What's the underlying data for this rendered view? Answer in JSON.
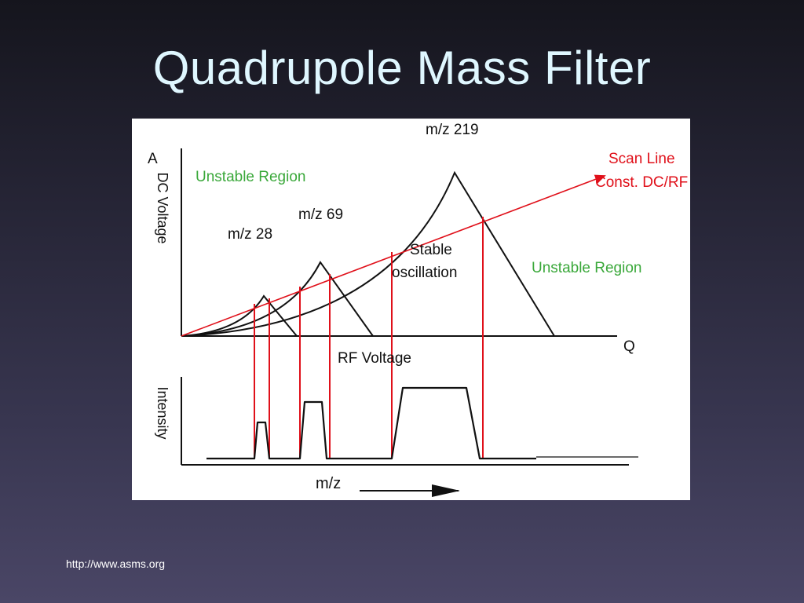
{
  "slide": {
    "title": "Quadrupole Mass Filter",
    "footer_url": "http://www.asms.org"
  },
  "diagram": {
    "top_panel": {
      "y_axis_top_label": "A",
      "y_axis_label": "DC Voltage",
      "x_axis_label": "RF Voltage",
      "x_axis_end_label": "Q",
      "unstable_region_left": "Unstable Region",
      "unstable_region_right": "Unstable Region",
      "stable_label_line1": "Stable",
      "stable_label_line2": "oscillation",
      "scan_line_line1": "Scan Line",
      "scan_line_line2": "Const. DC/RF",
      "peaks": [
        "m/z 28",
        "m/z 69",
        "m/z 219"
      ]
    },
    "bottom_panel": {
      "y_axis_label": "Intensity",
      "x_axis_label": "m/z"
    },
    "colors": {
      "scan_line": "#e0101a",
      "green_text": "#3aa83a",
      "red_text": "#e0101a",
      "black": "#111111"
    }
  }
}
